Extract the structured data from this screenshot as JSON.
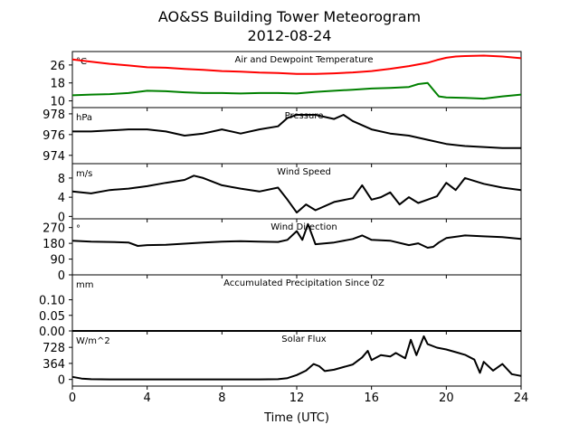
{
  "chart_data": {
    "type": "line",
    "title": "AO&SS Building Tower Meteorogram",
    "subtitle": "2012-08-24",
    "xlabel": "Time (UTC)",
    "xlim": [
      0,
      24
    ],
    "xticks": [
      0,
      4,
      8,
      12,
      16,
      20,
      24
    ],
    "panels": [
      {
        "title": "Air and Dewpoint Temperature",
        "unit": "°C",
        "ylim": [
          7,
          32
        ],
        "yticks": [
          10,
          18,
          26
        ],
        "series": [
          {
            "color": "#ff0000",
            "x": [
              0,
              1,
              2,
              3,
              4,
              5,
              6,
              7,
              8,
              9,
              10,
              11,
              12,
              13,
              14,
              15,
              16,
              17,
              18,
              19,
              19.5,
              20,
              20.5,
              21,
              22,
              23,
              24
            ],
            "y": [
              28.5,
              27.5,
              26.5,
              25.8,
              25,
              24.8,
              24.2,
              23.8,
              23.3,
              23,
              22.6,
              22.4,
              22,
              22,
              22.3,
              22.7,
              23.3,
              24.3,
              25.5,
              27,
              28.2,
              29.2,
              29.8,
              30,
              30.2,
              29.8,
              29
            ]
          },
          {
            "color": "#008000",
            "x": [
              0,
              1,
              2,
              3,
              4,
              5,
              6,
              7,
              8,
              9,
              10,
              11,
              12,
              13,
              14,
              15,
              16,
              17,
              18,
              18.5,
              19,
              19.3,
              19.6,
              20,
              21,
              22,
              23,
              24
            ],
            "y": [
              12.5,
              12.8,
              13,
              13.5,
              14.5,
              14.3,
              13.8,
              13.5,
              13.5,
              13.3,
              13.5,
              13.5,
              13.3,
              14,
              14.5,
              15,
              15.5,
              15.8,
              16.2,
              17.5,
              18,
              15,
              12,
              11.5,
              11.3,
              11,
              12,
              12.8
            ]
          }
        ]
      },
      {
        "title": "Pressure",
        "unit": "hPa",
        "ylim": [
          973.2,
          978.6
        ],
        "yticks": [
          974,
          976,
          978
        ],
        "series": [
          {
            "color": "#000000",
            "x": [
              0,
              1,
              2,
              3,
              4,
              5,
              6,
              7,
              8,
              9,
              10,
              11,
              11.5,
              12,
              13,
              14,
              14.5,
              15,
              16,
              17,
              18,
              19,
              20,
              21,
              22,
              23,
              24
            ],
            "y": [
              976.3,
              976.3,
              976.4,
              976.5,
              976.5,
              976.3,
              975.9,
              976.1,
              976.5,
              976.1,
              976.5,
              976.8,
              977.6,
              977.9,
              977.9,
              977.5,
              977.9,
              977.3,
              976.5,
              976.1,
              975.9,
              975.5,
              975.1,
              974.9,
              974.8,
              974.7,
              974.7
            ]
          }
        ]
      },
      {
        "title": "Wind Speed",
        "unit": "m/s",
        "ylim": [
          -0.5,
          11
        ],
        "yticks": [
          0,
          4,
          8
        ],
        "series": [
          {
            "color": "#000000",
            "x": [
              0,
              1,
              2,
              3,
              4,
              5,
              6,
              6.5,
              7,
              8,
              9,
              10,
              11,
              11.5,
              12,
              12.5,
              13,
              14,
              15,
              15.5,
              16,
              16.5,
              17,
              17.5,
              18,
              18.5,
              19,
              19.5,
              20,
              20.5,
              21,
              22,
              23,
              24
            ],
            "y": [
              5.2,
              4.8,
              5.5,
              5.8,
              6.3,
              7,
              7.6,
              8.5,
              8,
              6.5,
              5.8,
              5.2,
              6,
              3.5,
              0.8,
              2.5,
              1.3,
              3,
              3.8,
              6.5,
              3.5,
              4,
              5,
              2.5,
              4,
              2.8,
              3.5,
              4.2,
              7,
              5.5,
              8,
              6.8,
              6,
              5.5
            ]
          }
        ]
      },
      {
        "title": "Wind Direction",
        "unit": "°",
        "ylim": [
          0,
          320
        ],
        "yticks": [
          0,
          90,
          180,
          270
        ],
        "series": [
          {
            "color": "#000000",
            "x": [
              0,
              1,
              2,
              3,
              3.5,
              4,
              5,
              6,
              7,
              8,
              9,
              10,
              11,
              11.5,
              12,
              12.3,
              12.6,
              13,
              14,
              15,
              15.5,
              16,
              17,
              18,
              18.5,
              19,
              19.3,
              19.6,
              20,
              21,
              22,
              23,
              24
            ],
            "y": [
              195,
              190,
              188,
              185,
              165,
              170,
              172,
              178,
              185,
              190,
              192,
              190,
              188,
              200,
              250,
              200,
              290,
              175,
              185,
              205,
              225,
              200,
              195,
              170,
              180,
              155,
              160,
              185,
              210,
              225,
              220,
              215,
              205
            ]
          }
        ]
      },
      {
        "title": "Accumulated Precipitation Since 0Z",
        "unit": "mm",
        "ylim": [
          0,
          0.18
        ],
        "yticks": [
          0.0,
          0.05,
          0.1
        ],
        "ytick_labels": [
          "0.00",
          "0.05",
          "0.10"
        ],
        "series": [
          {
            "color": "#000000",
            "x": [
              0,
              24
            ],
            "y": [
              0,
              0
            ]
          }
        ]
      },
      {
        "title": "Solar Flux",
        "unit": "W/m^2",
        "ylim": [
          -150,
          1100
        ],
        "yticks": [
          0,
          364,
          728
        ],
        "series": [
          {
            "color": "#000000",
            "x": [
              0,
              0.5,
              1,
              2,
              4,
              6,
              8,
              10,
              11,
              11.5,
              12,
              12.5,
              12.9,
              13.2,
              13.5,
              14,
              15,
              15.5,
              15.8,
              16,
              16.5,
              17,
              17.3,
              17.8,
              18.1,
              18.4,
              18.8,
              19,
              19.5,
              20,
              21,
              21.5,
              21.8,
              22,
              22.5,
              23,
              23.5,
              24
            ],
            "y": [
              60,
              20,
              5,
              2,
              2,
              2,
              2,
              2,
              5,
              30,
              100,
              200,
              350,
              300,
              190,
              220,
              340,
              500,
              650,
              440,
              550,
              520,
              600,
              480,
              900,
              550,
              980,
              800,
              720,
              680,
              560,
              450,
              150,
              400,
              200,
              350,
              120,
              80
            ]
          }
        ]
      }
    ]
  }
}
